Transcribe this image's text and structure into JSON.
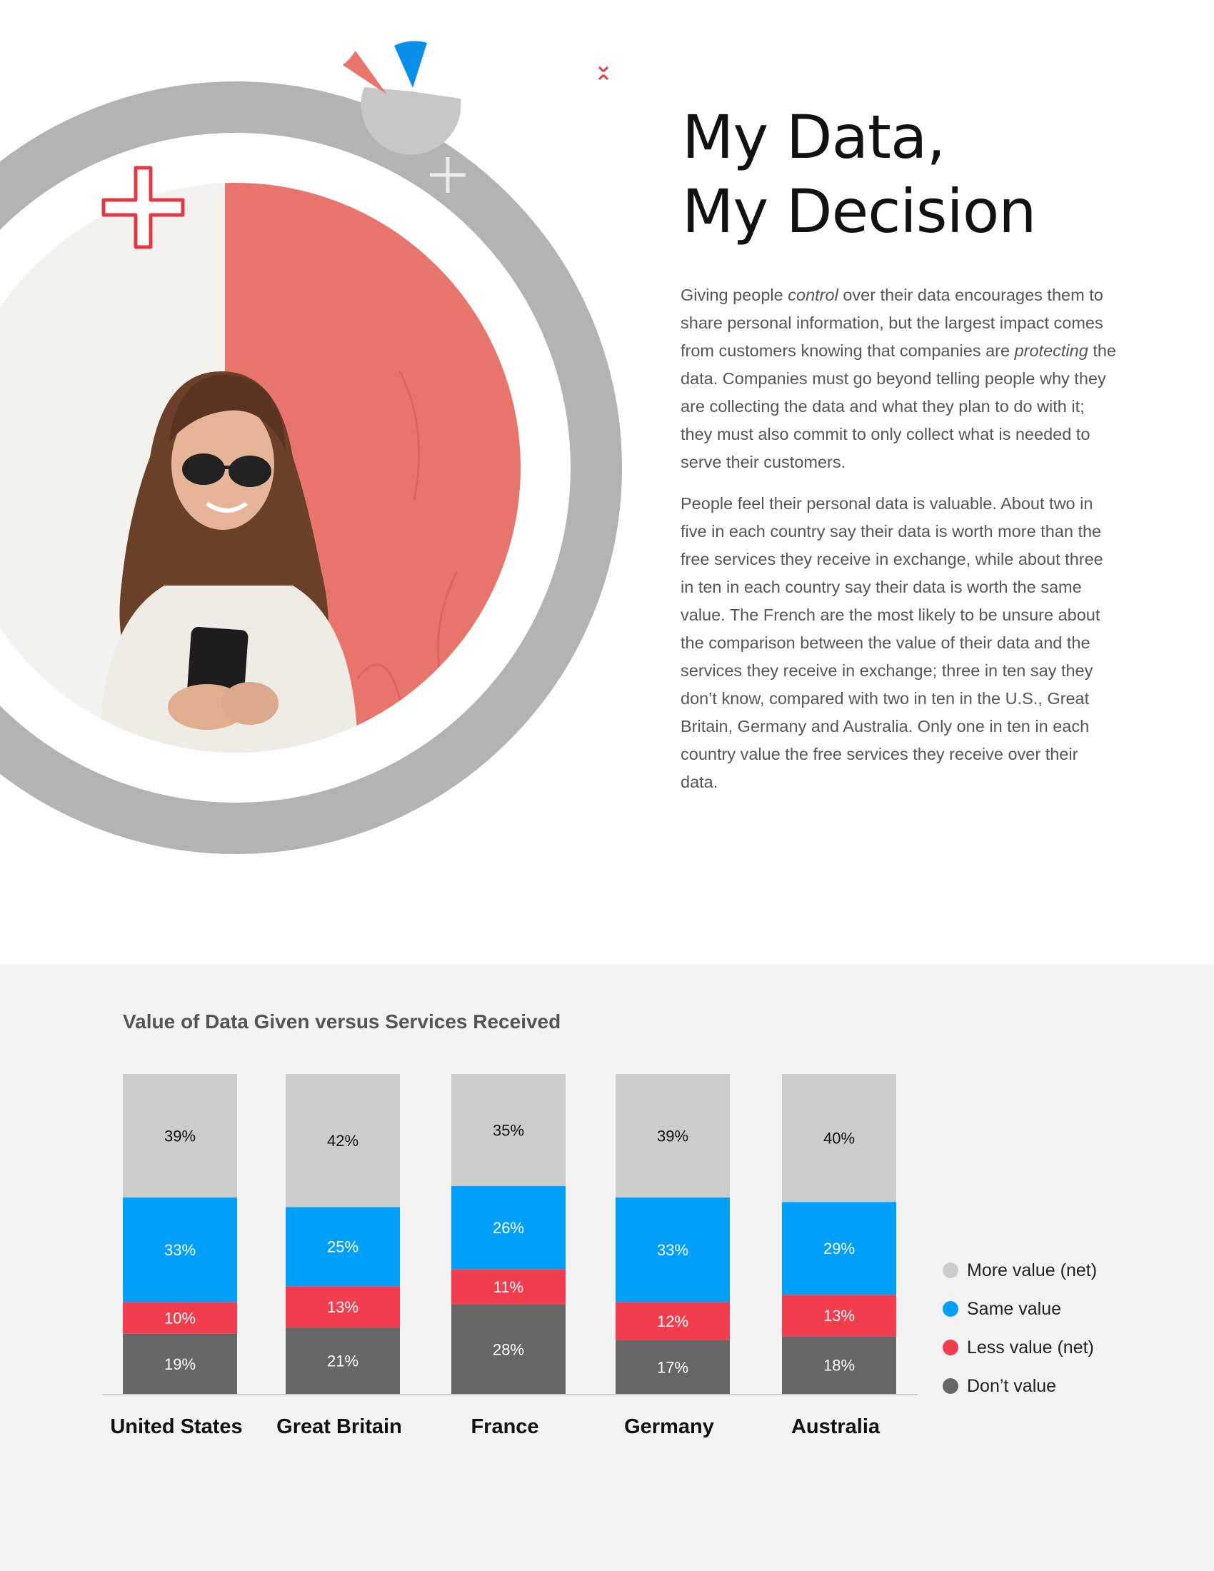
{
  "page": {
    "title_lines": [
      "My Data,",
      "My Decision"
    ],
    "paragraphs": [
      [
        {
          "text": "Giving people "
        },
        {
          "text": "control",
          "em": true
        },
        {
          "text": " over their data encourages them to share personal information, but the largest impact comes from customers knowing that companies are "
        },
        {
          "text": "protecting",
          "em": true
        },
        {
          "text": " the data. Companies must go beyond telling people why they are collecting the data and what they plan to do with it; they must also commit to only collect what is needed to serve their customers."
        }
      ],
      [
        {
          "text": "People feel their personal data is valuable. About two in five in each country say their data is worth more than the free services they receive in exchange, while about three in ten in each country say their data is worth the same value. The French are the most likely to be unsure about the comparison between the value of their data and the services they receive in exchange; three in ten say they don’t know, compared with two in ten in the U.S., Great Britain, Germany and Australia. Only one in ten in each country value the free services they receive over their data."
        }
      ]
    ]
  },
  "hero": {
    "photo_icon": "woman-with-phone-photo",
    "colors": {
      "ring": "#b3b3b3",
      "wall": "#e8756b",
      "wall_left": "#f4f2ef",
      "accent_red": "#e03a44",
      "accent_blue": "#0a8fe8",
      "gray_light": "#c8c8c8"
    }
  },
  "chart_data": {
    "type": "bar",
    "stacked": true,
    "title": "Value of Data Given versus Services Received",
    "categories": [
      "United States",
      "Great Britain",
      "France",
      "Germany",
      "Australia"
    ],
    "series": [
      {
        "name": "Don’t value",
        "color": "#666666",
        "label_color": "#ffffff",
        "values": [
          19,
          21,
          28,
          17,
          18
        ]
      },
      {
        "name": "Less value (net)",
        "color": "#f23d4f",
        "label_color": "#ffffff",
        "values": [
          10,
          13,
          11,
          12,
          13
        ]
      },
      {
        "name": "Same value",
        "color": "#00a0fa",
        "label_color": "#ffffff",
        "values": [
          33,
          25,
          26,
          33,
          29
        ]
      },
      {
        "name": "More value (net)",
        "color": "#cccccc",
        "label_color": "#111111",
        "values": [
          39,
          42,
          35,
          39,
          40
        ]
      }
    ],
    "value_suffix": "%",
    "legend": {
      "position": "right",
      "order": [
        "More value (net)",
        "Same value",
        "Less value (net)",
        "Don’t value"
      ]
    },
    "grid": false
  }
}
